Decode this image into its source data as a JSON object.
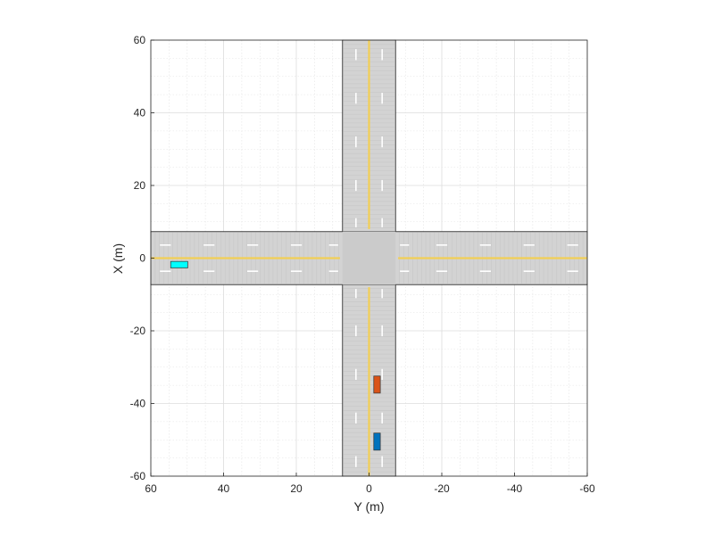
{
  "chart_data": {
    "type": "scenario-plot",
    "xlabel": "Y (m)",
    "ylabel": "X (m)",
    "xlim": [
      60,
      -60
    ],
    "ylim": [
      -60,
      60
    ],
    "x_ticks": [
      60,
      40,
      20,
      0,
      -20,
      -40,
      -60
    ],
    "y_ticks": [
      60,
      40,
      20,
      0,
      -20,
      -40,
      -60
    ],
    "grid": true,
    "minor_grid": true,
    "roads": [
      {
        "name": "north-south-road",
        "x_range": [
          -60,
          60
        ],
        "y_range": [
          -7.3,
          7.3
        ]
      },
      {
        "name": "east-west-road",
        "x_range": [
          -7.3,
          7.3
        ],
        "y_range": [
          -60,
          60
        ]
      }
    ],
    "vehicles": [
      {
        "name": "vehicle-blue",
        "x": -50.5,
        "y": -2.2,
        "length": 4.7,
        "width": 1.8,
        "color": "#0072BD",
        "heading": "north"
      },
      {
        "name": "vehicle-orange",
        "x": -34.8,
        "y": -2.2,
        "length": 4.7,
        "width": 1.8,
        "color": "#D95319",
        "heading": "north"
      },
      {
        "name": "vehicle-cyan",
        "x": -1.8,
        "y": 52.2,
        "length": 4.7,
        "width": 1.8,
        "color": "#00FFFF",
        "heading": "east"
      }
    ],
    "colors": {
      "road": "#d3d3d3",
      "intersection": "#cbcbcb",
      "center_line": "#f2cf55",
      "lane_marking": "#ffffff"
    }
  }
}
